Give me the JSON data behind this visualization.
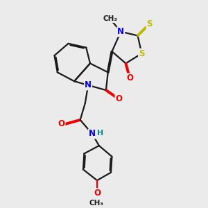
{
  "bg_color": "#ebebeb",
  "bond_color": "#1a1a1a",
  "bond_width": 1.6,
  "dbo": 0.06,
  "atom_colors": {
    "N": "#0000ee",
    "O": "#ee0000",
    "S": "#bbbb00",
    "H": "#008888",
    "C": "#1a1a1a"
  },
  "fs": 8.5
}
